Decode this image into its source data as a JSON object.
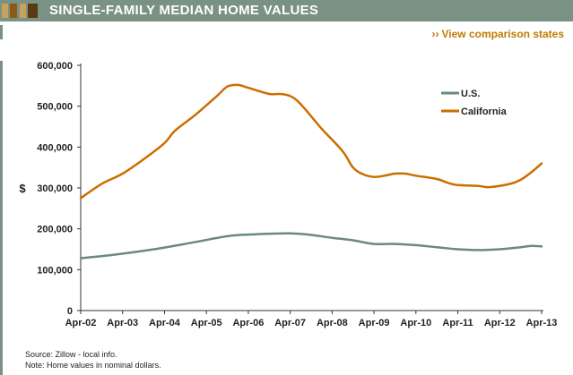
{
  "header": {
    "title": "SINGLE-FAMILY MEDIAN HOME VALUES",
    "bar_color": "#7a9283",
    "brand_colors": [
      "#c8a15a",
      "#8b5a14",
      "#c8a15a",
      "#5a3a10"
    ]
  },
  "links": {
    "view_comparison": "View comparison states",
    "arrows": "››"
  },
  "footer": {
    "source": "Source: Zillow - local info.",
    "note": "Note: Home values in nominal dollars."
  },
  "chart_data": {
    "type": "line",
    "title": "SINGLE-FAMILY MEDIAN HOME VALUES",
    "ylabel": "$",
    "xlabel": "",
    "ylim": [
      0,
      600000
    ],
    "yticks": [
      0,
      100000,
      200000,
      300000,
      400000,
      500000,
      600000
    ],
    "ytick_labels": [
      "0",
      "100,000",
      "200,000",
      "300,000",
      "400,000",
      "500,000",
      "600,000"
    ],
    "xlim": [
      2002.25,
      2013.25
    ],
    "xticks": [
      2002.25,
      2003.25,
      2004.25,
      2005.25,
      2006.25,
      2007.25,
      2008.25,
      2009.25,
      2010.25,
      2011.25,
      2012.25,
      2013.25
    ],
    "xtick_labels": [
      "Apr-02",
      "Apr-03",
      "Apr-04",
      "Apr-05",
      "Apr-06",
      "Apr-07",
      "Apr-08",
      "Apr-09",
      "Apr-10",
      "Apr-11",
      "Apr-12",
      "Apr-13"
    ],
    "grid": false,
    "legend": "top-right",
    "series": [
      {
        "name": "U.S.",
        "color": "#6b8a7c",
        "x": [
          2002.25,
          2003.0,
          2004.0,
          2005.0,
          2005.75,
          2006.25,
          2007.25,
          2007.75,
          2008.25,
          2008.75,
          2009.25,
          2009.75,
          2010.25,
          2010.75,
          2011.25,
          2011.75,
          2012.25,
          2012.75,
          2013.0,
          2013.25
        ],
        "y": [
          128000,
          136000,
          150000,
          168000,
          182000,
          186000,
          189000,
          185000,
          178000,
          172000,
          163000,
          163000,
          160000,
          155000,
          150000,
          148000,
          150000,
          155000,
          158000,
          157000
        ]
      },
      {
        "name": "California",
        "color": "#cc6e00",
        "x": [
          2002.25,
          2002.75,
          2003.25,
          2003.75,
          2004.25,
          2004.5,
          2005.0,
          2005.5,
          2005.75,
          2006.0,
          2006.25,
          2006.75,
          2007.0,
          2007.25,
          2007.5,
          2008.0,
          2008.5,
          2008.75,
          2009.0,
          2009.25,
          2009.5,
          2009.75,
          2010.0,
          2010.25,
          2010.75,
          2011.0,
          2011.25,
          2011.75,
          2012.0,
          2012.5,
          2012.75,
          2013.0,
          2013.25
        ],
        "y": [
          275000,
          310000,
          335000,
          370000,
          410000,
          440000,
          480000,
          525000,
          548000,
          552000,
          545000,
          530000,
          530000,
          525000,
          505000,
          445000,
          390000,
          350000,
          333000,
          327000,
          330000,
          335000,
          335000,
          330000,
          322000,
          313000,
          307000,
          305000,
          302000,
          310000,
          320000,
          338000,
          360000
        ]
      }
    ]
  }
}
